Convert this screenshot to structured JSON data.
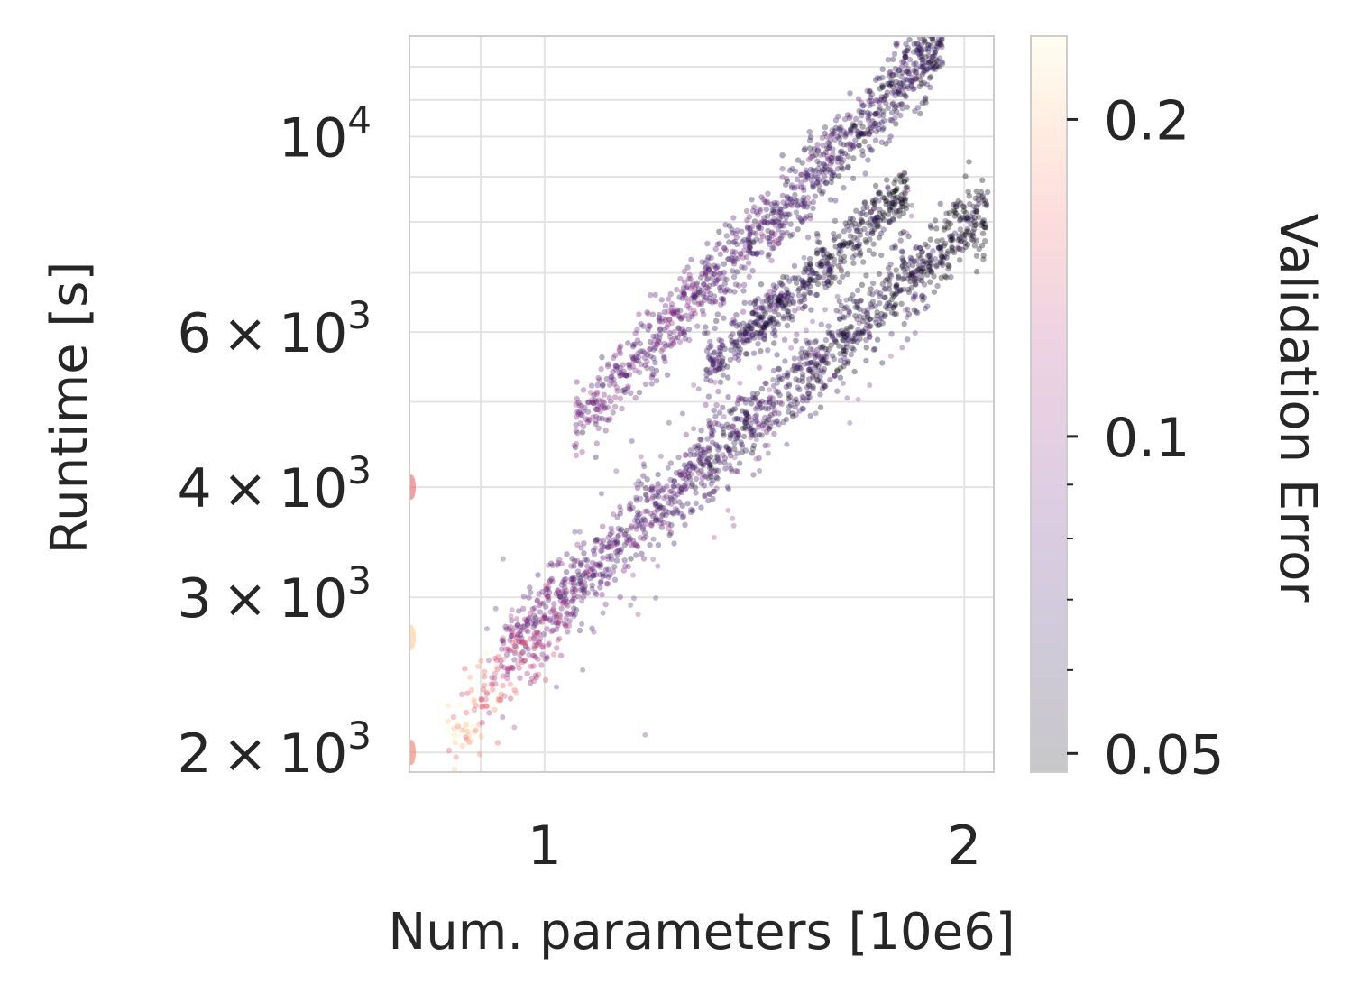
{
  "chart_data": {
    "type": "scatter",
    "title": "",
    "xlabel": "Num. parameters [10e6]",
    "ylabel": "Runtime [s]",
    "x_scale": "log",
    "y_scale": "log",
    "xlim": [
      0.8,
      2.1
    ],
    "ylim": [
      1900,
      13000
    ],
    "x_ticks": [
      {
        "value": 1,
        "label": "1"
      },
      {
        "value": 2,
        "label": "2"
      }
    ],
    "y_ticks": [
      {
        "value": 2000,
        "base": "2",
        "exponent": "3"
      },
      {
        "value": 3000,
        "base": "3",
        "exponent": "3"
      },
      {
        "value": 4000,
        "base": "4",
        "exponent": "3"
      },
      {
        "value": 6000,
        "base": "6",
        "exponent": "3"
      },
      {
        "value": 10000,
        "base": "10",
        "exponent": "4"
      }
    ],
    "y_tick_times": "×",
    "y_tick_power": "10",
    "grid": true,
    "colorbar": {
      "label": "Validation Error",
      "scale": "log",
      "range": [
        0.048,
        0.24
      ],
      "ticks": [
        {
          "value": 0.2,
          "label": "0.2"
        },
        {
          "value": 0.1,
          "label": "0.1"
        },
        {
          "value": 0.05,
          "label": "0.05"
        }
      ],
      "minor_ticks": [
        0.06,
        0.07,
        0.08,
        0.09
      ],
      "colormap": "magma"
    },
    "clusters": [
      {
        "description": "upper band",
        "x_start": 1.05,
        "y_start": 4700,
        "x_end": 1.93,
        "y_end": 12800,
        "error_start": 0.09,
        "error_end": 0.06,
        "spread": 0.05
      },
      {
        "description": "middle band",
        "x_start": 1.3,
        "y_start": 5400,
        "x_end": 1.82,
        "y_end": 8700,
        "error_start": 0.07,
        "error_end": 0.05,
        "spread": 0.035
      },
      {
        "description": "lower band",
        "x_start": 0.93,
        "y_start": 2600,
        "x_end": 2.08,
        "y_end": 8300,
        "error_start": 0.09,
        "error_end": 0.05,
        "spread": 0.05
      },
      {
        "description": "small-model tail",
        "x_start": 0.85,
        "y_start": 2050,
        "x_end": 1.05,
        "y_end": 3000,
        "error_start": 0.2,
        "error_end": 0.1,
        "spread": 0.06
      }
    ]
  }
}
